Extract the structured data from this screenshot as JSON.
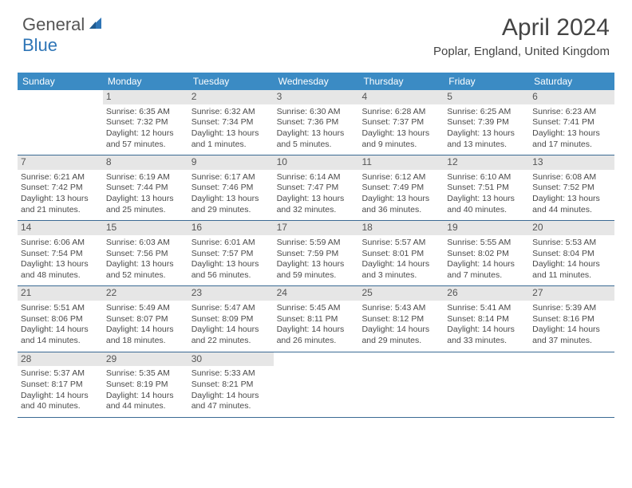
{
  "brand": {
    "part1": "General",
    "part2": "Blue"
  },
  "title": "April 2024",
  "location": "Poplar, England, United Kingdom",
  "colors": {
    "header_bg": "#3b8bc4",
    "header_text": "#ffffff",
    "daynum_bg": "#e6e6e6",
    "row_border": "#3b6a94",
    "text": "#4a4a4a",
    "brand_blue": "#2e75b6"
  },
  "weekdays": [
    "Sunday",
    "Monday",
    "Tuesday",
    "Wednesday",
    "Thursday",
    "Friday",
    "Saturday"
  ],
  "weeks": [
    [
      null,
      {
        "n": "1",
        "sr": "Sunrise: 6:35 AM",
        "ss": "Sunset: 7:32 PM",
        "d1": "Daylight: 12 hours",
        "d2": "and 57 minutes."
      },
      {
        "n": "2",
        "sr": "Sunrise: 6:32 AM",
        "ss": "Sunset: 7:34 PM",
        "d1": "Daylight: 13 hours",
        "d2": "and 1 minutes."
      },
      {
        "n": "3",
        "sr": "Sunrise: 6:30 AM",
        "ss": "Sunset: 7:36 PM",
        "d1": "Daylight: 13 hours",
        "d2": "and 5 minutes."
      },
      {
        "n": "4",
        "sr": "Sunrise: 6:28 AM",
        "ss": "Sunset: 7:37 PM",
        "d1": "Daylight: 13 hours",
        "d2": "and 9 minutes."
      },
      {
        "n": "5",
        "sr": "Sunrise: 6:25 AM",
        "ss": "Sunset: 7:39 PM",
        "d1": "Daylight: 13 hours",
        "d2": "and 13 minutes."
      },
      {
        "n": "6",
        "sr": "Sunrise: 6:23 AM",
        "ss": "Sunset: 7:41 PM",
        "d1": "Daylight: 13 hours",
        "d2": "and 17 minutes."
      }
    ],
    [
      {
        "n": "7",
        "sr": "Sunrise: 6:21 AM",
        "ss": "Sunset: 7:42 PM",
        "d1": "Daylight: 13 hours",
        "d2": "and 21 minutes."
      },
      {
        "n": "8",
        "sr": "Sunrise: 6:19 AM",
        "ss": "Sunset: 7:44 PM",
        "d1": "Daylight: 13 hours",
        "d2": "and 25 minutes."
      },
      {
        "n": "9",
        "sr": "Sunrise: 6:17 AM",
        "ss": "Sunset: 7:46 PM",
        "d1": "Daylight: 13 hours",
        "d2": "and 29 minutes."
      },
      {
        "n": "10",
        "sr": "Sunrise: 6:14 AM",
        "ss": "Sunset: 7:47 PM",
        "d1": "Daylight: 13 hours",
        "d2": "and 32 minutes."
      },
      {
        "n": "11",
        "sr": "Sunrise: 6:12 AM",
        "ss": "Sunset: 7:49 PM",
        "d1": "Daylight: 13 hours",
        "d2": "and 36 minutes."
      },
      {
        "n": "12",
        "sr": "Sunrise: 6:10 AM",
        "ss": "Sunset: 7:51 PM",
        "d1": "Daylight: 13 hours",
        "d2": "and 40 minutes."
      },
      {
        "n": "13",
        "sr": "Sunrise: 6:08 AM",
        "ss": "Sunset: 7:52 PM",
        "d1": "Daylight: 13 hours",
        "d2": "and 44 minutes."
      }
    ],
    [
      {
        "n": "14",
        "sr": "Sunrise: 6:06 AM",
        "ss": "Sunset: 7:54 PM",
        "d1": "Daylight: 13 hours",
        "d2": "and 48 minutes."
      },
      {
        "n": "15",
        "sr": "Sunrise: 6:03 AM",
        "ss": "Sunset: 7:56 PM",
        "d1": "Daylight: 13 hours",
        "d2": "and 52 minutes."
      },
      {
        "n": "16",
        "sr": "Sunrise: 6:01 AM",
        "ss": "Sunset: 7:57 PM",
        "d1": "Daylight: 13 hours",
        "d2": "and 56 minutes."
      },
      {
        "n": "17",
        "sr": "Sunrise: 5:59 AM",
        "ss": "Sunset: 7:59 PM",
        "d1": "Daylight: 13 hours",
        "d2": "and 59 minutes."
      },
      {
        "n": "18",
        "sr": "Sunrise: 5:57 AM",
        "ss": "Sunset: 8:01 PM",
        "d1": "Daylight: 14 hours",
        "d2": "and 3 minutes."
      },
      {
        "n": "19",
        "sr": "Sunrise: 5:55 AM",
        "ss": "Sunset: 8:02 PM",
        "d1": "Daylight: 14 hours",
        "d2": "and 7 minutes."
      },
      {
        "n": "20",
        "sr": "Sunrise: 5:53 AM",
        "ss": "Sunset: 8:04 PM",
        "d1": "Daylight: 14 hours",
        "d2": "and 11 minutes."
      }
    ],
    [
      {
        "n": "21",
        "sr": "Sunrise: 5:51 AM",
        "ss": "Sunset: 8:06 PM",
        "d1": "Daylight: 14 hours",
        "d2": "and 14 minutes."
      },
      {
        "n": "22",
        "sr": "Sunrise: 5:49 AM",
        "ss": "Sunset: 8:07 PM",
        "d1": "Daylight: 14 hours",
        "d2": "and 18 minutes."
      },
      {
        "n": "23",
        "sr": "Sunrise: 5:47 AM",
        "ss": "Sunset: 8:09 PM",
        "d1": "Daylight: 14 hours",
        "d2": "and 22 minutes."
      },
      {
        "n": "24",
        "sr": "Sunrise: 5:45 AM",
        "ss": "Sunset: 8:11 PM",
        "d1": "Daylight: 14 hours",
        "d2": "and 26 minutes."
      },
      {
        "n": "25",
        "sr": "Sunrise: 5:43 AM",
        "ss": "Sunset: 8:12 PM",
        "d1": "Daylight: 14 hours",
        "d2": "and 29 minutes."
      },
      {
        "n": "26",
        "sr": "Sunrise: 5:41 AM",
        "ss": "Sunset: 8:14 PM",
        "d1": "Daylight: 14 hours",
        "d2": "and 33 minutes."
      },
      {
        "n": "27",
        "sr": "Sunrise: 5:39 AM",
        "ss": "Sunset: 8:16 PM",
        "d1": "Daylight: 14 hours",
        "d2": "and 37 minutes."
      }
    ],
    [
      {
        "n": "28",
        "sr": "Sunrise: 5:37 AM",
        "ss": "Sunset: 8:17 PM",
        "d1": "Daylight: 14 hours",
        "d2": "and 40 minutes."
      },
      {
        "n": "29",
        "sr": "Sunrise: 5:35 AM",
        "ss": "Sunset: 8:19 PM",
        "d1": "Daylight: 14 hours",
        "d2": "and 44 minutes."
      },
      {
        "n": "30",
        "sr": "Sunrise: 5:33 AM",
        "ss": "Sunset: 8:21 PM",
        "d1": "Daylight: 14 hours",
        "d2": "and 47 minutes."
      },
      null,
      null,
      null,
      null
    ]
  ]
}
